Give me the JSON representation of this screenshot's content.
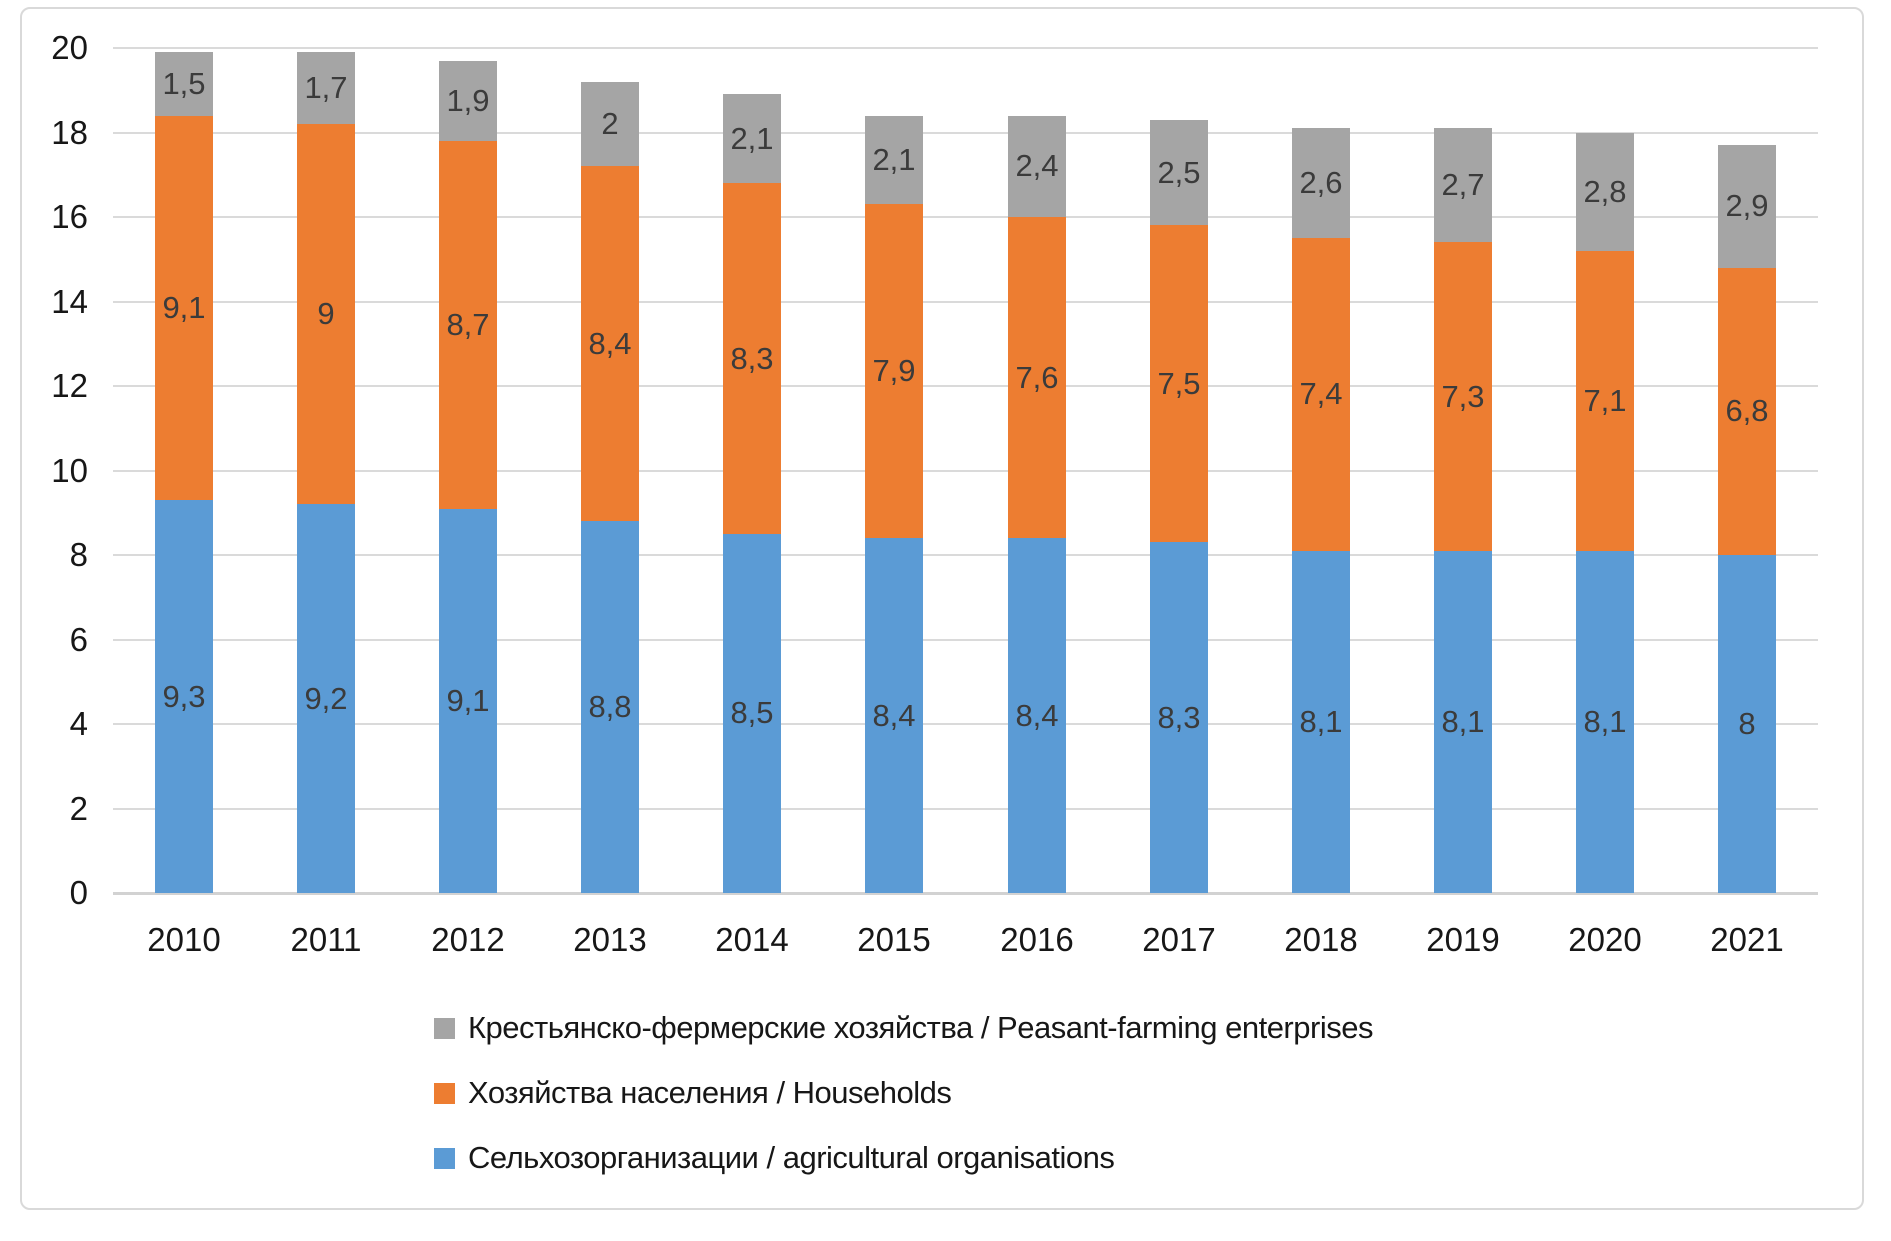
{
  "chart_data": {
    "type": "bar",
    "stacked": true,
    "title": "",
    "categories": [
      "2010",
      "2011",
      "2012",
      "2013",
      "2014",
      "2015",
      "2016",
      "2017",
      "2018",
      "2019",
      "2020",
      "2021"
    ],
    "series": [
      {
        "name": "Сельхозорганизации / agricultural organisations",
        "color": "#5B9BD5",
        "values": [
          9.3,
          9.2,
          9.1,
          8.8,
          8.5,
          8.4,
          8.4,
          8.3,
          8.1,
          8.1,
          8.1,
          8
        ],
        "labels": [
          "9,3",
          "9,2",
          "9,1",
          "8,8",
          "8,5",
          "8,4",
          "8,4",
          "8,3",
          "8,1",
          "8,1",
          "8,1",
          "8"
        ]
      },
      {
        "name": "Хозяйства населения / Households",
        "color": "#ED7D31",
        "values": [
          9.1,
          9,
          8.7,
          8.4,
          8.3,
          7.9,
          7.6,
          7.5,
          7.4,
          7.3,
          7.1,
          6.8
        ],
        "labels": [
          "9,1",
          "9",
          "8,7",
          "8,4",
          "8,3",
          "7,9",
          "7,6",
          "7,5",
          "7,4",
          "7,3",
          "7,1",
          "6,8"
        ]
      },
      {
        "name": "Крестьянско-фермерские хозяйства / Peasant-farming enterprises",
        "color": "#A5A5A5",
        "values": [
          1.5,
          1.7,
          1.9,
          2,
          2.1,
          2.1,
          2.4,
          2.5,
          2.6,
          2.7,
          2.8,
          2.9
        ],
        "labels": [
          "1,5",
          "1,7",
          "1,9",
          "2",
          "2,1",
          "2,1",
          "2,4",
          "2,5",
          "2,6",
          "2,7",
          "2,8",
          "2,9"
        ]
      }
    ],
    "ylim": [
      0,
      20
    ],
    "ytick_step": 2,
    "yticks": [
      "0",
      "2",
      "4",
      "6",
      "8",
      "10",
      "12",
      "14",
      "16",
      "18",
      "20"
    ],
    "xlabel": "",
    "ylabel": "",
    "grid": "horizontal",
    "legend": {
      "position": "bottom-left",
      "order_top_to_bottom": [
        2,
        1,
        0
      ]
    },
    "colors": {
      "grid_line": "#dadada",
      "axis_line": "#d2d2d2",
      "data_label": "#3b3b3b",
      "tick_label": "#171717",
      "frame_border": "#d9d9d9"
    }
  }
}
